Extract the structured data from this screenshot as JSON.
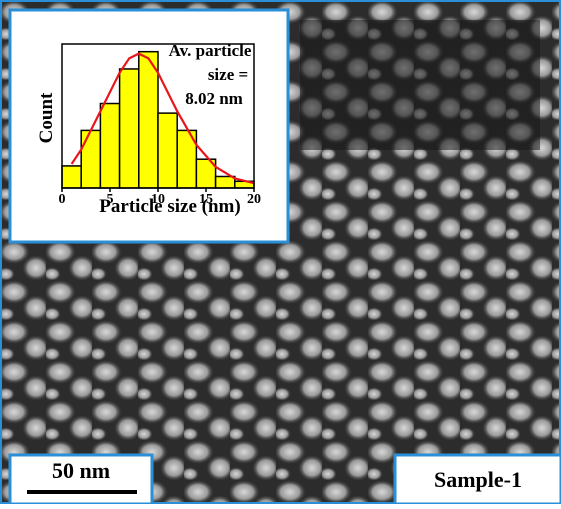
{
  "chart_data": {
    "type": "histogram",
    "bins": [
      0,
      2,
      4,
      6,
      8,
      10,
      12,
      14,
      16,
      18,
      20
    ],
    "values": [
      23,
      60,
      88,
      124,
      142,
      78,
      60,
      30,
      12,
      7
    ],
    "color": "#ffff00",
    "fit": {
      "color": "#e8161b",
      "x": [
        1,
        2,
        4,
        6,
        7,
        8,
        9,
        10,
        12,
        14,
        16,
        18,
        20
      ],
      "values": [
        25,
        40,
        80,
        120,
        135,
        140,
        135,
        120,
        80,
        45,
        22,
        10,
        5
      ]
    },
    "xlim": [
      0,
      20
    ],
    "xticks": [
      0,
      5,
      10,
      15,
      20
    ],
    "ylim": [
      0,
      150
    ],
    "xlabel": "Particle size (nm)",
    "ylabel": "Count",
    "annotation": [
      "Av. particle",
      "size =",
      "8.02 nm"
    ]
  },
  "scale_bar_label": "50 nm",
  "sample_label": "Sample-1"
}
